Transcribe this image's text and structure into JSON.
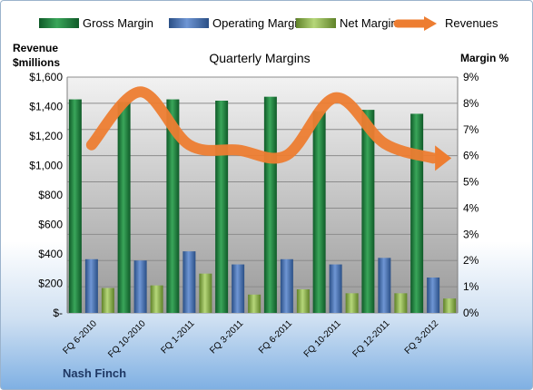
{
  "chart_data": {
    "type": "bar",
    "title": "Quarterly Margins",
    "footer": "Nash Finch",
    "y_left_label": [
      "Revenue",
      "$millions"
    ],
    "y_right_label": "Margin %",
    "y_left_range": [
      0,
      1600
    ],
    "y_right_range": [
      0,
      9
    ],
    "y_left_ticks": [
      "$-",
      "$200",
      "$400",
      "$600",
      "$800",
      "$1,000",
      "$1,200",
      "$1,400",
      "$1,600"
    ],
    "y_right_ticks": [
      "0%",
      "1%",
      "2%",
      "3%",
      "4%",
      "5%",
      "6%",
      "7%",
      "8%",
      "9%"
    ],
    "categories": [
      "FQ 6-2010",
      "FQ 10-2010",
      "FQ 1-2011",
      "FQ 3-2011",
      "FQ 6-2011",
      "FQ 10-2011",
      "FQ 12-2011",
      "FQ 3-2012"
    ],
    "series": [
      {
        "name": "Gross Margin",
        "axis": "right",
        "type": "bar",
        "color": "#1e7a3c",
        "values": [
          8.15,
          8.05,
          8.15,
          8.1,
          8.25,
          7.7,
          7.75,
          7.6
        ]
      },
      {
        "name": "Operating Margin",
        "axis": "right",
        "type": "bar",
        "color": "#3d6bb0",
        "values": [
          2.05,
          2.0,
          2.35,
          1.85,
          2.05,
          1.85,
          2.1,
          1.35
        ]
      },
      {
        "name": "Net Margin",
        "axis": "right",
        "type": "bar",
        "color": "#8cb547",
        "values": [
          0.95,
          1.05,
          1.5,
          0.7,
          0.9,
          0.75,
          0.75,
          0.55
        ]
      },
      {
        "name": "Revenues",
        "axis": "left",
        "type": "line",
        "color": "#ed7d31",
        "values": [
          1140,
          1500,
          1140,
          1105,
          1070,
          1460,
          1150,
          1050
        ]
      }
    ],
    "grid": true,
    "legend_position": "top"
  }
}
